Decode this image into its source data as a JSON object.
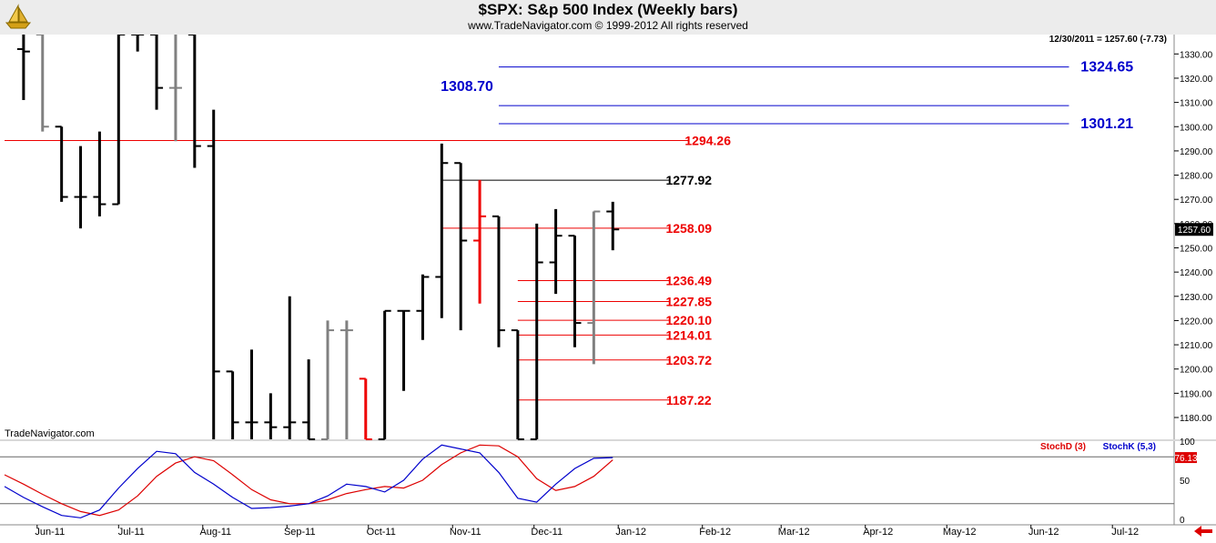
{
  "chart_title": "$SPX:  S&p 500 Index  (Weekly bars)",
  "subtitle": "www.TradeNavigator.com © 1999-2012 All rights reserved",
  "watermark": "TradeNavigator.com",
  "last_bar_info": "12/30/2011 = 1257.60 (-7.73)",
  "last_price_badge": "1257.60",
  "colors": {
    "up": "#000000",
    "down": "#808080",
    "red": "#ee0000",
    "blue": "#0000cc",
    "stoch_d": "#dd0000",
    "stoch_k": "#0000cc",
    "accent_green": "#22aa22"
  },
  "icons": {
    "logo": "sailboat-logo-icon",
    "scroll": "scroll-left-arrow-icon"
  },
  "chart_data": [
    {
      "type": "ohlc",
      "ylim": [
        1171,
        1338
      ],
      "y_ticks": [
        1180,
        1190,
        1200,
        1210,
        1220,
        1230,
        1240,
        1250,
        1260,
        1270,
        1280,
        1290,
        1300,
        1310,
        1320,
        1330
      ],
      "y_tick_labels": [
        "1180.00",
        "1190.00",
        "1200.00",
        "1210.00",
        "1220.00",
        "1230.00",
        "1240.00",
        "1250.00",
        "1260.00",
        "1270.00",
        "1280.00",
        "1290.00",
        "1300.00",
        "1310.00",
        "1320.00",
        "1330.00"
      ],
      "x_labels": [
        "Jun-11",
        "Jul-11",
        "Aug-11",
        "Sep-11",
        "Oct-11",
        "Nov-11",
        "Dec-11",
        "Jan-12",
        "Feb-12",
        "Mar-12",
        "Apr-12",
        "May-12",
        "Jun-12",
        "Jul-12"
      ],
      "bars": [
        {
          "date": "2011-05-27",
          "o": 1332,
          "h": 1338,
          "l": 1311,
          "c": 1331,
          "color": "up"
        },
        {
          "date": "2011-06-03",
          "o": 1338,
          "h": 1338,
          "l": 1298,
          "c": 1300,
          "color": "down"
        },
        {
          "date": "2011-06-10",
          "o": 1300,
          "h": 1300,
          "l": 1269,
          "c": 1271,
          "color": "up"
        },
        {
          "date": "2011-06-17",
          "o": 1271,
          "h": 1292,
          "l": 1258,
          "c": 1271,
          "color": "up"
        },
        {
          "date": "2011-06-24",
          "o": 1271,
          "h": 1298,
          "l": 1263,
          "c": 1268,
          "color": "up"
        },
        {
          "date": "2011-07-01",
          "o": 1268,
          "h": 1338,
          "l": 1268,
          "c": 1338,
          "color": "up"
        },
        {
          "date": "2011-07-08",
          "o": 1338,
          "h": 1338,
          "l": 1331,
          "c": 1338,
          "color": "up"
        },
        {
          "date": "2011-07-15",
          "o": 1338,
          "h": 1338,
          "l": 1307,
          "c": 1316,
          "color": "up"
        },
        {
          "date": "2011-07-22",
          "o": 1316,
          "h": 1338,
          "l": 1294,
          "c": 1316,
          "color": "down"
        },
        {
          "date": "2011-07-29",
          "o": 1338,
          "h": 1338,
          "l": 1283,
          "c": 1292,
          "color": "up"
        },
        {
          "date": "2011-08-05",
          "o": 1292,
          "h": 1307,
          "l": 1171,
          "c": 1199,
          "color": "up"
        },
        {
          "date": "2011-08-12",
          "o": 1199,
          "h": 1199,
          "l": 1171,
          "c": 1178,
          "color": "up"
        },
        {
          "date": "2011-08-19",
          "o": 1178,
          "h": 1208,
          "l": 1171,
          "c": 1178,
          "color": "up"
        },
        {
          "date": "2011-08-26",
          "o": 1178,
          "h": 1190,
          "l": 1171,
          "c": 1176,
          "color": "up"
        },
        {
          "date": "2011-09-02",
          "o": 1176,
          "h": 1230,
          "l": 1171,
          "c": 1178,
          "color": "up"
        },
        {
          "date": "2011-09-09",
          "o": 1178,
          "h": 1204,
          "l": 1171,
          "c": 1171,
          "color": "up"
        },
        {
          "date": "2011-09-16",
          "o": 1171,
          "h": 1220,
          "l": 1171,
          "c": 1216,
          "color": "down"
        },
        {
          "date": "2011-09-23",
          "o": 1216,
          "h": 1220,
          "l": 1171,
          "c": 1216,
          "color": "down"
        },
        {
          "date": "2011-09-30",
          "o": 1196,
          "h": 1196,
          "l": 1171,
          "c": 1171,
          "color": "red"
        },
        {
          "date": "2011-10-07",
          "o": 1171,
          "h": 1224,
          "l": 1171,
          "c": 1224,
          "color": "up"
        },
        {
          "date": "2011-10-14",
          "o": 1224,
          "h": 1224,
          "l": 1191,
          "c": 1224,
          "color": "up"
        },
        {
          "date": "2011-10-21",
          "o": 1224,
          "h": 1239,
          "l": 1212,
          "c": 1238,
          "color": "up"
        },
        {
          "date": "2011-10-28",
          "o": 1238,
          "h": 1293,
          "l": 1221,
          "c": 1285,
          "color": "up"
        },
        {
          "date": "2011-11-04",
          "o": 1285,
          "h": 1285,
          "l": 1216,
          "c": 1253,
          "color": "up"
        },
        {
          "date": "2011-11-11",
          "o": 1253,
          "h": 1278,
          "l": 1227,
          "c": 1263,
          "color": "red"
        },
        {
          "date": "2011-11-18",
          "o": 1263,
          "h": 1263,
          "l": 1209,
          "c": 1216,
          "color": "up"
        },
        {
          "date": "2011-11-25",
          "o": 1216,
          "h": 1216,
          "l": 1171,
          "c": 1171,
          "color": "up"
        },
        {
          "date": "2011-12-02",
          "o": 1171,
          "h": 1260,
          "l": 1171,
          "c": 1244,
          "color": "up"
        },
        {
          "date": "2011-12-09",
          "o": 1244,
          "h": 1266,
          "l": 1231,
          "c": 1255,
          "color": "up"
        },
        {
          "date": "2011-12-16",
          "o": 1255,
          "h": 1255,
          "l": 1209,
          "c": 1219,
          "color": "up"
        },
        {
          "date": "2011-12-23",
          "o": 1219,
          "h": 1265,
          "l": 1202,
          "c": 1265,
          "color": "down"
        },
        {
          "date": "2011-12-30",
          "o": 1265,
          "h": 1269,
          "l": 1249,
          "c": 1257.6,
          "color": "up"
        }
      ],
      "levels": [
        {
          "value": 1324.65,
          "label": "1324.65",
          "color": "blue",
          "from": "2011-11-18",
          "to": "2012-06-15",
          "label_at": "2012-06-29"
        },
        {
          "value": 1308.7,
          "label": "1308.70",
          "color": "blue",
          "from": "2011-11-18",
          "to": "2012-06-15",
          "label_at": "2011-11-04"
        },
        {
          "value": 1301.21,
          "label": "1301.21",
          "color": "blue",
          "from": "2011-11-18",
          "to": "2012-06-15",
          "label_at": "2012-06-29"
        },
        {
          "value": 1294.26,
          "label": "1294.26",
          "color": "red",
          "from": "2011-05-20",
          "to": "2012-01-27",
          "label_at": "2012-02-03"
        },
        {
          "value": 1277.92,
          "label": "1277.92",
          "color": "black",
          "from": "2011-10-28",
          "to": "2012-01-20",
          "label_at": "2012-01-27"
        },
        {
          "value": 1258.09,
          "label": "1258.09",
          "color": "red",
          "from": "2011-10-28",
          "to": "2012-01-20",
          "label_at": "2012-01-27"
        },
        {
          "value": 1236.49,
          "label": "1236.49",
          "color": "red",
          "from": "2011-11-25",
          "to": "2012-01-20",
          "label_at": "2012-01-27"
        },
        {
          "value": 1227.85,
          "label": "1227.85",
          "color": "red",
          "from": "2011-11-25",
          "to": "2012-01-20",
          "label_at": "2012-01-27"
        },
        {
          "value": 1220.1,
          "label": "1220.10",
          "color": "red",
          "from": "2011-11-25",
          "to": "2012-01-20",
          "label_at": "2012-01-27"
        },
        {
          "value": 1214.01,
          "label": "1214.01",
          "color": "red",
          "from": "2011-11-25",
          "to": "2012-01-20",
          "label_at": "2012-01-27"
        },
        {
          "value": 1203.72,
          "label": "1203.72",
          "color": "red",
          "from": "2011-11-25",
          "to": "2012-01-20",
          "label_at": "2012-01-27"
        },
        {
          "value": 1187.22,
          "label": "1187.22",
          "color": "red",
          "from": "2011-11-25",
          "to": "2012-01-20",
          "label_at": "2012-01-27"
        }
      ]
    },
    {
      "type": "line",
      "ylim": [
        0,
        100
      ],
      "y_ticks": [
        0,
        50,
        100
      ],
      "y_tick_labels": [
        "0",
        "50",
        "100"
      ],
      "reference_lines": [
        80,
        20
      ],
      "last_value_badge": "76.13",
      "x": [
        "2011-05-20",
        "2011-05-27",
        "2011-06-03",
        "2011-06-10",
        "2011-06-17",
        "2011-06-24",
        "2011-07-01",
        "2011-07-08",
        "2011-07-15",
        "2011-07-22",
        "2011-07-29",
        "2011-08-05",
        "2011-08-12",
        "2011-08-19",
        "2011-08-26",
        "2011-09-02",
        "2011-09-09",
        "2011-09-16",
        "2011-09-23",
        "2011-09-30",
        "2011-10-07",
        "2011-10-14",
        "2011-10-21",
        "2011-10-28",
        "2011-11-04",
        "2011-11-11",
        "2011-11-18",
        "2011-11-25",
        "2011-12-02",
        "2011-12-09",
        "2011-12-16",
        "2011-12-23",
        "2011-12-30"
      ],
      "series": [
        {
          "name": "StochD (3)",
          "color": "stoch_d",
          "values": [
            57,
            45,
            32,
            20,
            10,
            5,
            12,
            30,
            55,
            72,
            80,
            75,
            57,
            38,
            25,
            20,
            20,
            25,
            33,
            38,
            42,
            40,
            50,
            70,
            85,
            95,
            94,
            80,
            52,
            37,
            42,
            55,
            76
          ]
        },
        {
          "name": "StochK (5,3)",
          "color": "stoch_k",
          "values": [
            42,
            28,
            16,
            5,
            2,
            12,
            40,
            65,
            87,
            84,
            60,
            45,
            28,
            14,
            15,
            17,
            20,
            30,
            45,
            42,
            35,
            50,
            77,
            95,
            90,
            85,
            60,
            27,
            22,
            45,
            65,
            78,
            79
          ]
        }
      ]
    }
  ]
}
